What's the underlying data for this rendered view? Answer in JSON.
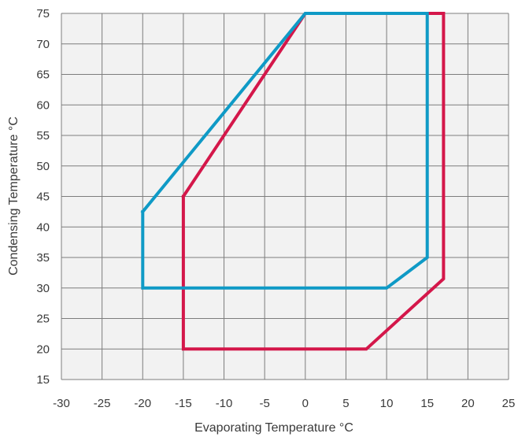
{
  "chart_data": {
    "type": "line",
    "title": "",
    "xlabel": "Evaporating Temperature °C",
    "ylabel": "Condensing Temperature °C",
    "xlim": [
      -30,
      25
    ],
    "ylim": [
      15,
      75
    ],
    "xticks": [
      -30,
      -25,
      -20,
      -15,
      -10,
      -5,
      0,
      5,
      10,
      15,
      20,
      25
    ],
    "yticks": [
      15,
      20,
      25,
      30,
      35,
      40,
      45,
      50,
      55,
      60,
      65,
      70,
      75
    ],
    "grid": true,
    "legend": "none",
    "series": [
      {
        "color": "#d4174a",
        "closed": true,
        "points": [
          [
            -15,
            45
          ],
          [
            0,
            75
          ],
          [
            17,
            75
          ],
          [
            17,
            31.5
          ],
          [
            7.5,
            20
          ],
          [
            -15,
            20
          ],
          [
            -15,
            45
          ]
        ]
      },
      {
        "color": "#0f9ac6",
        "closed": true,
        "points": [
          [
            -20,
            42.5
          ],
          [
            0,
            75
          ],
          [
            15,
            75
          ],
          [
            15,
            35
          ],
          [
            10,
            30
          ],
          [
            -20,
            30
          ],
          [
            -20,
            42.5
          ]
        ]
      }
    ]
  }
}
